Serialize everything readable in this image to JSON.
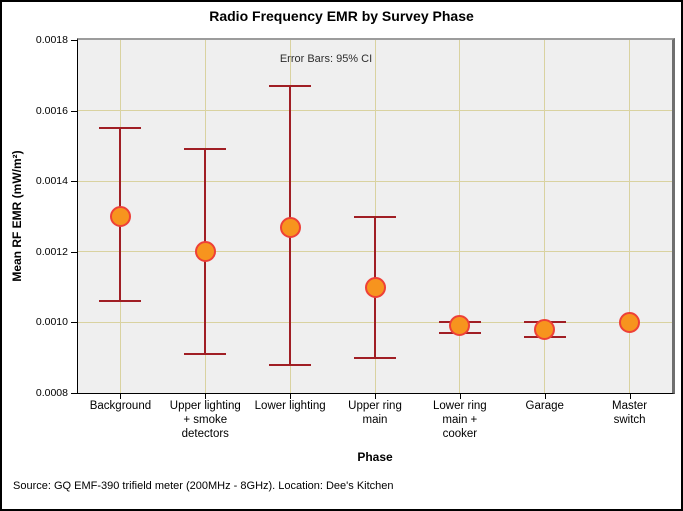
{
  "chart_data": {
    "type": "scatter",
    "title": "Radio Frequency EMR by Survey Phase",
    "annotation": "Error Bars: 95% CI",
    "xlabel": "Phase",
    "ylabel": "Mean RF EMR (mW/m²)",
    "source_note": "Source: GQ EMF-390 trifield meter (200MHz - 8GHz). Location: Dee's Kitchen",
    "ylim": [
      0.0008,
      0.0018
    ],
    "y_ticks": [
      0.0018,
      0.0016,
      0.0014,
      0.0012,
      0.001,
      0.0008
    ],
    "y_tick_labels": [
      "0.0018",
      "0.0016",
      "0.0014",
      "0.0012",
      "0.0010",
      "0.0008"
    ],
    "grid": true,
    "legend": "none",
    "categories": [
      "Background",
      "Upper lighting + smoke detectors",
      "Lower lighting",
      "Upper ring main",
      "Lower ring main + cooker",
      "Garage",
      "Master switch"
    ],
    "category_label_lines": [
      [
        "Background"
      ],
      [
        "Upper lighting",
        "+ smoke",
        "detectors"
      ],
      [
        "Lower lighting"
      ],
      [
        "Upper ring",
        "main"
      ],
      [
        "Lower ring",
        "main +",
        "cooker"
      ],
      [
        "Garage"
      ],
      [
        "Master switch"
      ]
    ],
    "points": [
      {
        "category": "Background",
        "mean": 0.0013,
        "ci_low": 0.00106,
        "ci_high": 0.00155
      },
      {
        "category": "Upper lighting + smoke detectors",
        "mean": 0.0012,
        "ci_low": 0.00091,
        "ci_high": 0.00149
      },
      {
        "category": "Lower lighting",
        "mean": 0.00127,
        "ci_low": 0.00088,
        "ci_high": 0.00167
      },
      {
        "category": "Upper ring main",
        "mean": 0.0011,
        "ci_low": 0.0009,
        "ci_high": 0.0013
      },
      {
        "category": "Lower ring main + cooker",
        "mean": 0.00099,
        "ci_low": 0.00097,
        "ci_high": 0.001
      },
      {
        "category": "Garage",
        "mean": 0.00098,
        "ci_low": 0.00096,
        "ci_high": 0.001
      },
      {
        "category": "Master switch",
        "mean": 0.001,
        "ci_low": null,
        "ci_high": null
      }
    ],
    "colors": {
      "marker_fill": "#F7941E",
      "marker_border": "#EE4037",
      "error_bar": "#A01E24",
      "gridline": "#D9D2A0",
      "plot_bg": "#EFEFEF",
      "frame_top": "#9C9C9C",
      "frame_right": "#6F6F6F",
      "axis_line": "#000000"
    }
  }
}
